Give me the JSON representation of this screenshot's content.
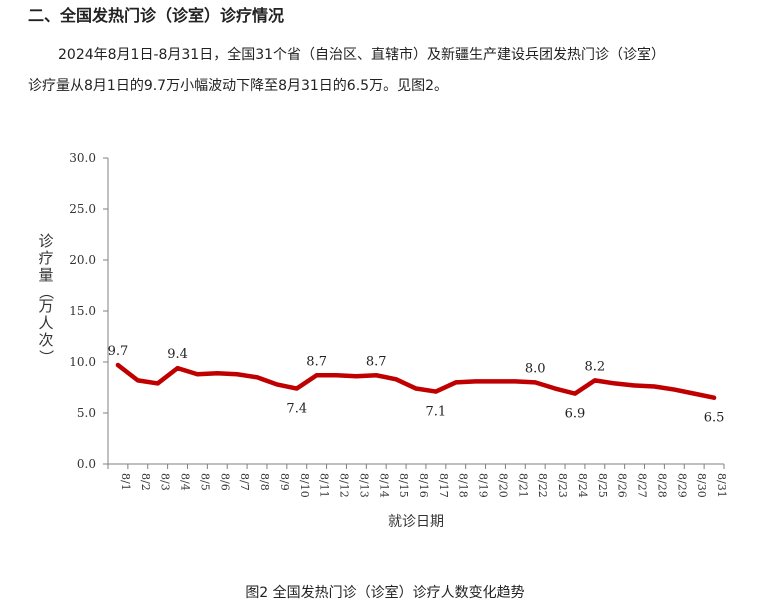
{
  "section_title": "二、全国发热门诊（诊室）诊疗情况",
  "paragraph": {
    "line1": "2024年8月1日-8月31日，全国31个省（自治区、直辖市）及新疆生产建设兵团发热门诊（诊室）",
    "line2": "诊疗量从8月1日的9.7万小幅波动下降至8月31日的6.5万。见图2。"
  },
  "caption": "图2  全国发热门诊（诊室）诊疗人数变化趋势",
  "chart_data": {
    "type": "line",
    "xlabel": "就诊日期",
    "ylabel": "诊疗量（万人次）",
    "ylim": [
      0,
      30
    ],
    "yticks": [
      "0.0",
      "5.0",
      "10.0",
      "15.0",
      "20.0",
      "25.0",
      "30.0"
    ],
    "grid": false,
    "line_color": "#c00000",
    "categories": [
      "8/1",
      "8/2",
      "8/3",
      "8/4",
      "8/5",
      "8/6",
      "8/7",
      "8/8",
      "8/9",
      "8/10",
      "8/11",
      "8/12",
      "8/13",
      "8/14",
      "8/15",
      "8/16",
      "8/17",
      "8/18",
      "8/19",
      "8/20",
      "8/21",
      "8/22",
      "8/23",
      "8/24",
      "8/25",
      "8/26",
      "8/27",
      "8/28",
      "8/29",
      "8/30",
      "8/31"
    ],
    "values": [
      9.7,
      8.2,
      7.9,
      9.4,
      8.8,
      8.9,
      8.8,
      8.5,
      7.8,
      7.4,
      8.7,
      8.7,
      8.6,
      8.7,
      8.3,
      7.4,
      7.1,
      8.0,
      8.1,
      8.1,
      8.1,
      8.0,
      7.4,
      6.9,
      8.2,
      7.9,
      7.7,
      7.6,
      7.3,
      6.9,
      6.5
    ],
    "data_labels": [
      {
        "index": 0,
        "text": "9.7",
        "position": "above"
      },
      {
        "index": 3,
        "text": "9.4",
        "position": "above"
      },
      {
        "index": 9,
        "text": "7.4",
        "position": "below"
      },
      {
        "index": 10,
        "text": "8.7",
        "position": "above"
      },
      {
        "index": 13,
        "text": "8.7",
        "position": "above"
      },
      {
        "index": 16,
        "text": "7.1",
        "position": "below"
      },
      {
        "index": 21,
        "text": "8.0",
        "position": "above"
      },
      {
        "index": 23,
        "text": "6.9",
        "position": "below"
      },
      {
        "index": 24,
        "text": "8.2",
        "position": "above"
      },
      {
        "index": 30,
        "text": "6.5",
        "position": "below"
      }
    ]
  }
}
